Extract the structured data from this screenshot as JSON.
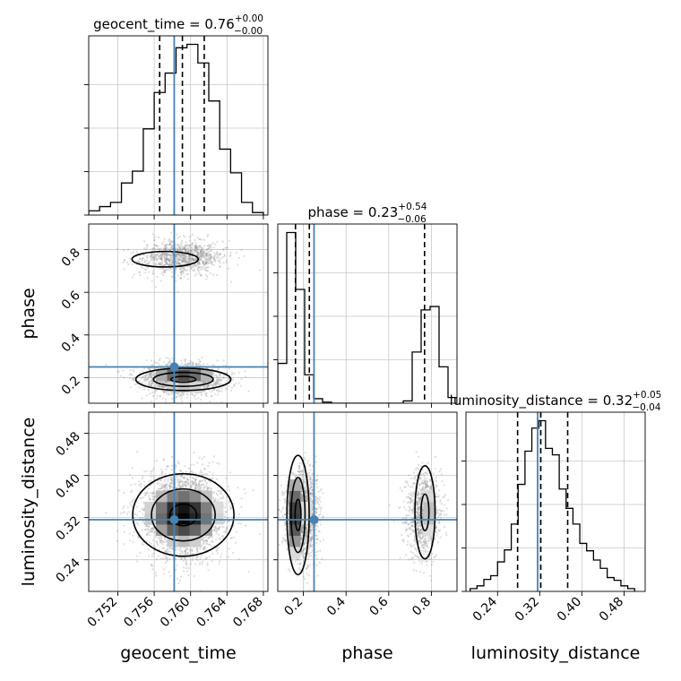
{
  "chart_data": {
    "type": "corner",
    "parameters": [
      {
        "name": "geocent_time",
        "xlabel": "geocent_time",
        "ylabel": "",
        "range": [
          0.7488,
          0.7685
        ],
        "ticks": [
          0.752,
          0.756,
          0.76,
          0.764,
          0.768
        ],
        "tick_labels": [
          "0.752",
          "0.756",
          "0.760",
          "0.764",
          "0.768"
        ],
        "truth": 0.7582,
        "quantiles": [
          0.7566,
          0.7591,
          0.7615
        ],
        "title_prefix": "geocent_time = 0.76",
        "title_sup": "+0.00",
        "title_sub": "−0.00",
        "hist_bin_edges": [
          0.7488,
          0.75,
          0.7512,
          0.7524,
          0.7536,
          0.7548,
          0.756,
          0.7572,
          0.7584,
          0.7596,
          0.7608,
          0.762,
          0.7632,
          0.7644,
          0.7656,
          0.7668,
          0.768
        ],
        "hist_values": [
          0.5,
          1,
          1.5,
          3.8,
          5.2,
          10.2,
          14.5,
          16.8,
          19.8,
          20.2,
          18,
          13.5,
          7.8,
          5,
          1.5,
          0.3
        ]
      },
      {
        "name": "phase",
        "xlabel": "phase",
        "ylabel": "phase",
        "range": [
          0.08,
          0.92
        ],
        "ticks": [
          0.2,
          0.4,
          0.6,
          0.8
        ],
        "tick_labels": [
          "0.2",
          "0.4",
          "0.6",
          "0.8"
        ],
        "truth": 0.25,
        "quantiles": [
          0.163,
          0.228,
          0.768
        ],
        "title_prefix": "phase = 0.23",
        "title_sup": "+0.54",
        "title_sub": "−0.06",
        "hist_bin_edges": [
          0.08,
          0.122,
          0.164,
          0.206,
          0.248,
          0.29,
          0.332,
          0.374,
          0.416,
          0.458,
          0.5,
          0.542,
          0.584,
          0.626,
          0.668,
          0.71,
          0.752,
          0.794,
          0.836,
          0.878,
          0.92
        ],
        "hist_values": [
          3.5,
          15,
          10,
          2.5,
          0.4,
          0.1,
          0,
          0,
          0,
          0,
          0,
          0,
          0,
          0,
          0.2,
          4.5,
          8.2,
          8.5,
          3.2,
          0.5
        ]
      },
      {
        "name": "luminosity_distance",
        "xlabel": "luminosity_distance",
        "ylabel": "luminosity_distance",
        "range": [
          0.18,
          0.52
        ],
        "ticks": [
          0.24,
          0.32,
          0.4,
          0.48
        ],
        "tick_labels": [
          "0.24",
          "0.32",
          "0.40",
          "0.48"
        ],
        "truth": 0.316,
        "quantiles": [
          0.278,
          0.322,
          0.373
        ],
        "title_prefix": "luminosity_distance = 0.32",
        "title_sup": "+0.05",
        "title_sub": "−0.04",
        "hist_bin_edges": [
          0.188,
          0.201,
          0.214,
          0.227,
          0.24,
          0.253,
          0.266,
          0.279,
          0.292,
          0.305,
          0.318,
          0.331,
          0.344,
          0.357,
          0.37,
          0.383,
          0.396,
          0.409,
          0.422,
          0.435,
          0.448,
          0.461,
          0.474,
          0.487,
          0.5
        ],
        "hist_values": [
          0.3,
          0.6,
          1.3,
          1.7,
          3.2,
          4.5,
          7.3,
          11.6,
          15.2,
          17.7,
          18.5,
          15.5,
          14.8,
          11.1,
          9,
          7.3,
          5.2,
          4.4,
          3.4,
          2.5,
          1.5,
          1.2,
          0.6,
          0.3
        ]
      }
    ],
    "grid": true,
    "colors": {
      "hist": "#000000",
      "truth": "#4682b4",
      "scatter": "#888888",
      "quantile": "#000000"
    }
  }
}
